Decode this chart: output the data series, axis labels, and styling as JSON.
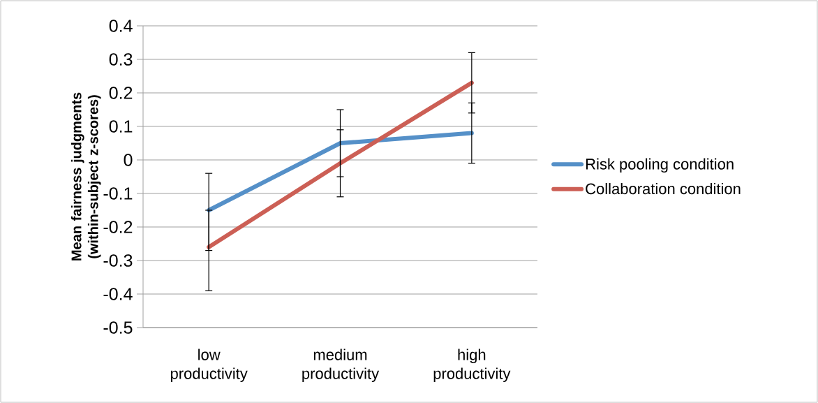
{
  "chart_data": {
    "type": "line",
    "ylabel": "Mean fairness judgments (within-subject z-scores)",
    "categories": [
      "low productivity",
      "medium productivity",
      "high productivity"
    ],
    "series": [
      {
        "name": "Risk pooling condition",
        "color": "#5590c8",
        "values": [
          -0.15,
          0.05,
          0.08
        ],
        "errors": [
          [
            -0.27,
            -0.04
          ],
          [
            -0.05,
            0.15
          ],
          [
            -0.01,
            0.17
          ]
        ]
      },
      {
        "name": "Collaboration condition",
        "color": "#cc5f55",
        "values": [
          -0.26,
          -0.01,
          0.23
        ],
        "errors": [
          [
            -0.39,
            -0.15
          ],
          [
            -0.11,
            0.09
          ],
          [
            0.14,
            0.32
          ]
        ]
      }
    ],
    "ylim": [
      -0.5,
      0.4
    ],
    "yticks": [
      -0.5,
      -0.4,
      -0.3,
      -0.2,
      -0.1,
      0,
      0.1,
      0.2,
      0.3,
      0.4
    ],
    "grid": "y",
    "legend": "right",
    "marker": "none",
    "line_style": "solid"
  }
}
